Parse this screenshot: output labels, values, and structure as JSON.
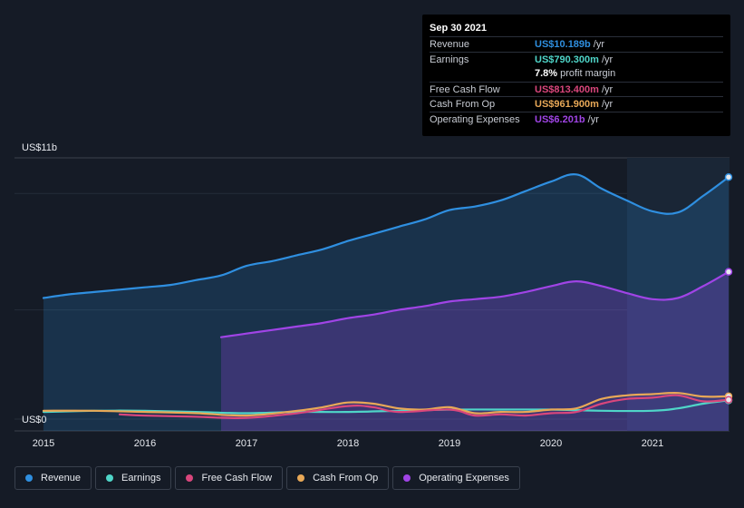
{
  "chart_data": {
    "type": "area",
    "x_ticks": [
      2015,
      2016,
      2017,
      2018,
      2019,
      2020,
      2021
    ],
    "x_tick_labels": [
      "2015",
      "2016",
      "2017",
      "2018",
      "2019",
      "2020",
      "2021"
    ],
    "y_top_label": "US$11b",
    "y_bottom_label": "US$0",
    "ylim": [
      0,
      11
    ],
    "xlim": [
      2014.7,
      2021.75
    ],
    "forecast_start": 2020.75,
    "series": [
      {
        "key": "revenue",
        "name": "Revenue",
        "color": "#2f8fe0",
        "filled": true,
        "end_marker": true,
        "x": [
          2015,
          2015.25,
          2015.5,
          2015.75,
          2016,
          2016.25,
          2016.5,
          2016.75,
          2017,
          2017.25,
          2017.5,
          2017.75,
          2018,
          2018.25,
          2018.5,
          2018.75,
          2019,
          2019.25,
          2019.5,
          2019.75,
          2020,
          2020.25,
          2020.5,
          2020.75,
          2021,
          2021.25,
          2021.5,
          2021.75
        ],
        "values": [
          5.1,
          5.25,
          5.35,
          5.45,
          5.55,
          5.65,
          5.85,
          6.05,
          6.45,
          6.65,
          6.9,
          7.15,
          7.5,
          7.8,
          8.1,
          8.4,
          8.8,
          8.95,
          9.2,
          9.6,
          10.0,
          10.3,
          9.7,
          9.2,
          8.75,
          8.7,
          9.4,
          10.189
        ]
      },
      {
        "key": "opex",
        "name": "Operating Expenses",
        "color": "#a044e6",
        "filled": true,
        "end_marker": true,
        "x": [
          2016.75,
          2017,
          2017.25,
          2017.5,
          2017.75,
          2018,
          2018.25,
          2018.5,
          2018.75,
          2019,
          2019.25,
          2019.5,
          2019.75,
          2020,
          2020.25,
          2020.5,
          2020.75,
          2021,
          2021.25,
          2021.5,
          2021.75
        ],
        "values": [
          3.45,
          3.6,
          3.75,
          3.9,
          4.05,
          4.25,
          4.4,
          4.6,
          4.75,
          4.95,
          5.05,
          5.15,
          5.35,
          5.6,
          5.8,
          5.6,
          5.3,
          5.05,
          5.1,
          5.6,
          6.201
        ]
      },
      {
        "key": "earnings",
        "name": "Earnings",
        "color": "#4fd5c8",
        "filled": false,
        "end_marker": true,
        "x": [
          2015,
          2015.5,
          2016,
          2016.5,
          2017,
          2017.5,
          2018,
          2018.5,
          2019,
          2019.5,
          2020,
          2020.5,
          2021,
          2021.25,
          2021.5,
          2021.75
        ],
        "values": [
          0.3,
          0.35,
          0.35,
          0.3,
          0.25,
          0.3,
          0.3,
          0.35,
          0.4,
          0.4,
          0.4,
          0.35,
          0.35,
          0.45,
          0.65,
          0.79
        ]
      },
      {
        "key": "fcf",
        "name": "Free Cash Flow",
        "color": "#d9467c",
        "filled": false,
        "end_marker": true,
        "x": [
          2015.75,
          2016,
          2016.5,
          2017,
          2017.5,
          2018,
          2018.25,
          2018.5,
          2019,
          2019.25,
          2019.5,
          2019.75,
          2020,
          2020.25,
          2020.5,
          2020.75,
          2021,
          2021.25,
          2021.5,
          2021.75
        ],
        "values": [
          0.2,
          0.15,
          0.1,
          0.05,
          0.25,
          0.55,
          0.5,
          0.3,
          0.4,
          0.15,
          0.2,
          0.15,
          0.25,
          0.3,
          0.65,
          0.85,
          0.9,
          1.0,
          0.75,
          0.8134
        ]
      },
      {
        "key": "cfo",
        "name": "Cash From Op",
        "color": "#e8a857",
        "filled": false,
        "end_marker": true,
        "x": [
          2015,
          2015.5,
          2016,
          2016.5,
          2017,
          2017.5,
          2017.75,
          2018,
          2018.25,
          2018.5,
          2018.75,
          2019,
          2019.25,
          2019.5,
          2019.75,
          2020,
          2020.25,
          2020.5,
          2020.75,
          2021,
          2021.25,
          2021.5,
          2021.75
        ],
        "values": [
          0.35,
          0.35,
          0.3,
          0.25,
          0.15,
          0.35,
          0.5,
          0.7,
          0.65,
          0.45,
          0.4,
          0.5,
          0.25,
          0.3,
          0.3,
          0.4,
          0.45,
          0.85,
          1.0,
          1.05,
          1.1,
          0.95,
          0.9619
        ]
      }
    ]
  },
  "tooltip": {
    "date": "Sep 30 2021",
    "rows": [
      {
        "label": "Revenue",
        "value": "US$10.189b",
        "unit": "/yr",
        "color": "#2f8fe0"
      },
      {
        "label": "Earnings",
        "value": "US$790.300m",
        "unit": "/yr",
        "color": "#4fd5c8"
      },
      {
        "label": "",
        "value": "7.8%",
        "unit": "profit margin",
        "color": "#ffffff"
      },
      {
        "label": "Free Cash Flow",
        "value": "US$813.400m",
        "unit": "/yr",
        "color": "#d9467c"
      },
      {
        "label": "Cash From Op",
        "value": "US$961.900m",
        "unit": "/yr",
        "color": "#e8a857"
      },
      {
        "label": "Operating Expenses",
        "value": "US$6.201b",
        "unit": "/yr",
        "color": "#a044e6"
      }
    ]
  },
  "legend": [
    {
      "label": "Revenue",
      "color": "#2f8fe0"
    },
    {
      "label": "Earnings",
      "color": "#4fd5c8"
    },
    {
      "label": "Free Cash Flow",
      "color": "#d9467c"
    },
    {
      "label": "Cash From Op",
      "color": "#e8a857"
    },
    {
      "label": "Operating Expenses",
      "color": "#a044e6"
    }
  ]
}
